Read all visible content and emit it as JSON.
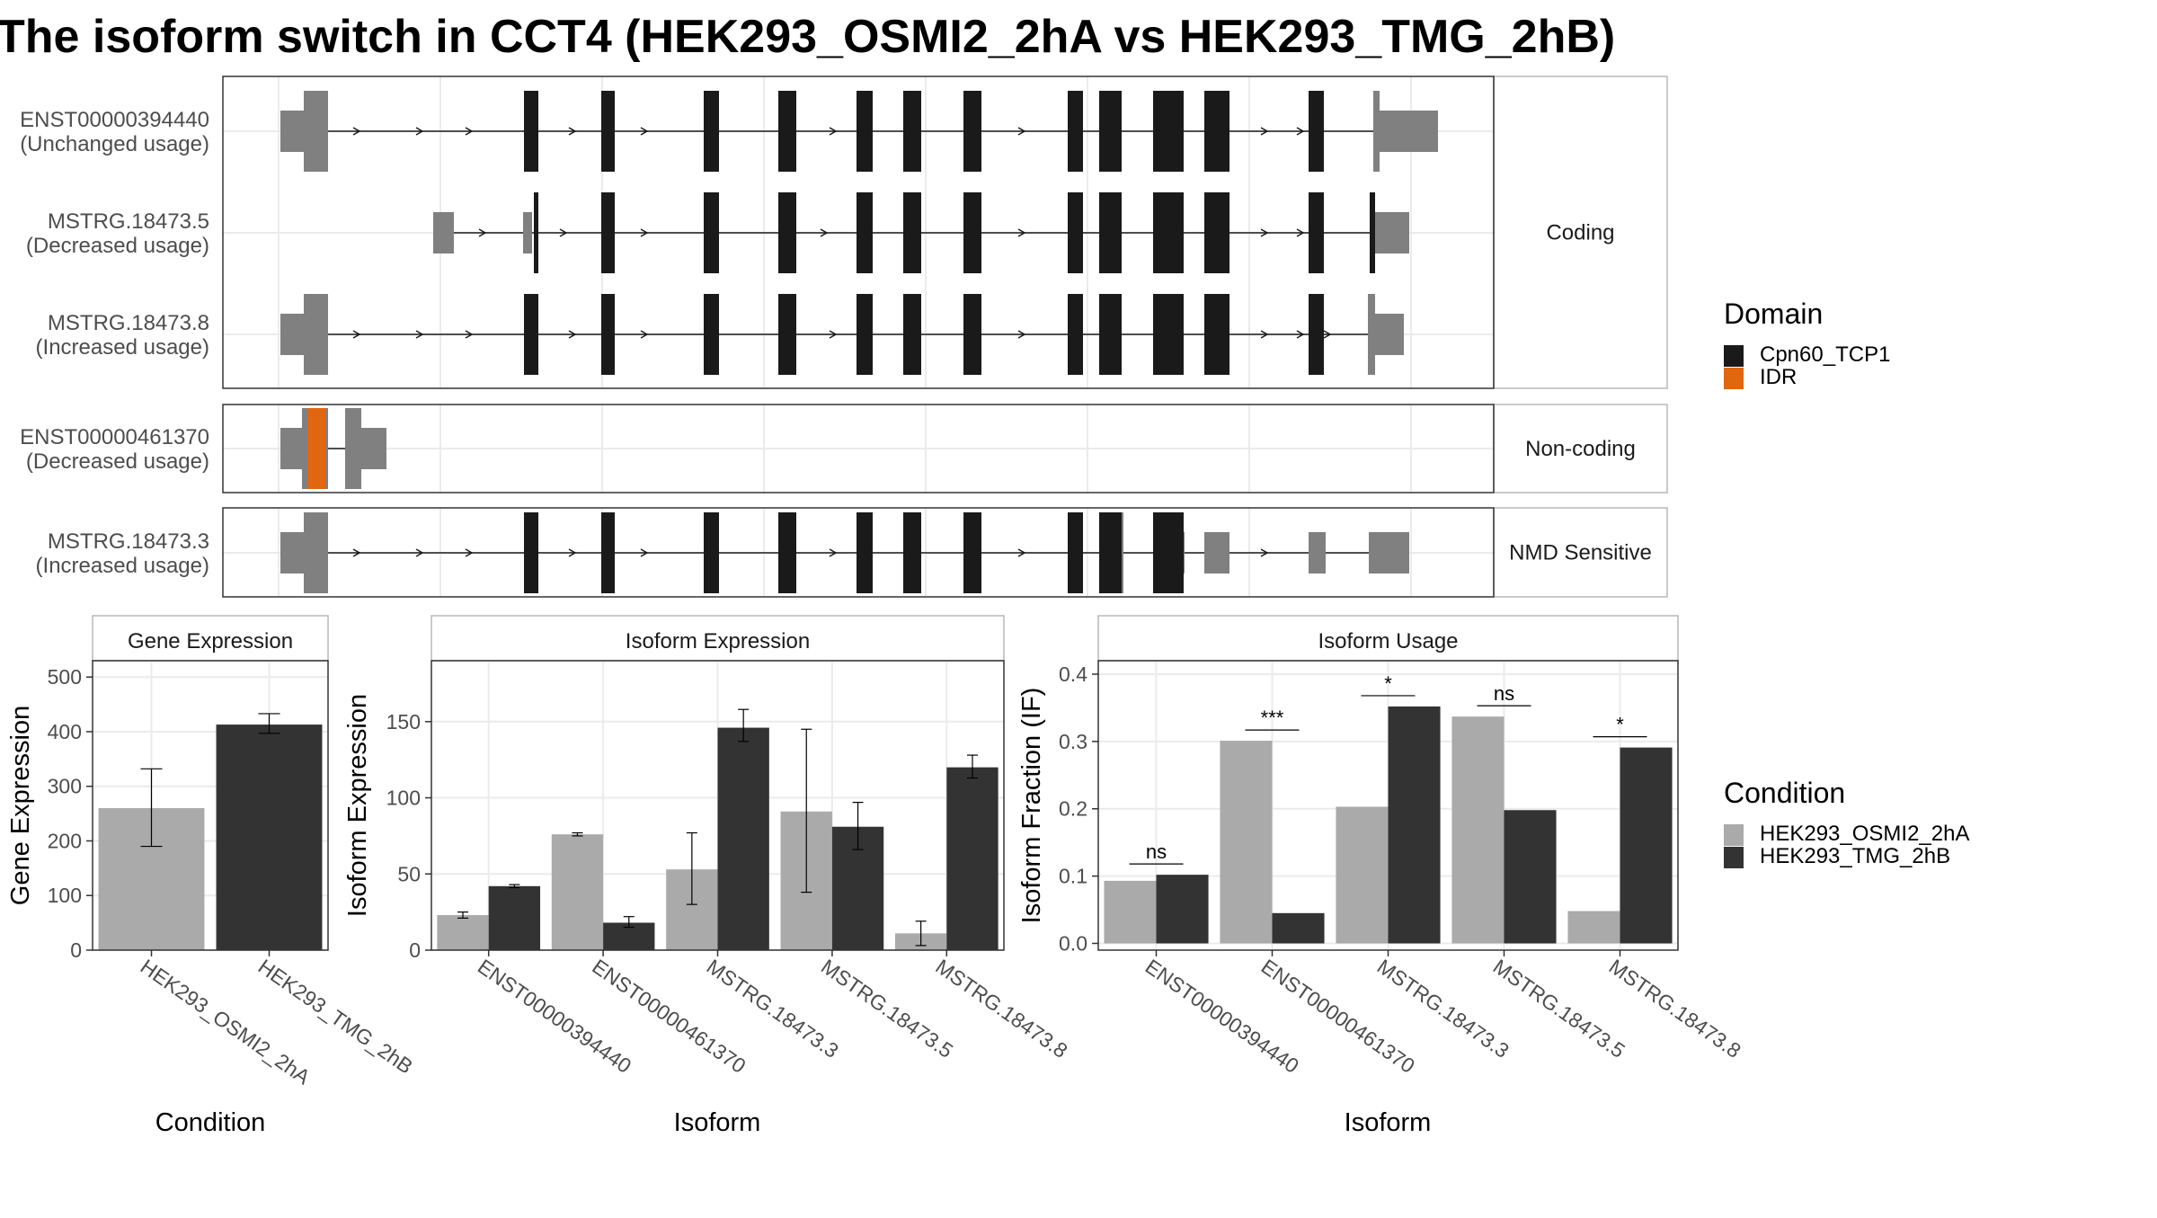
{
  "title": "The isoform switch in CCT4 (HEK293_OSMI2_2hA vs HEK293_TMG_2hB)",
  "transcripts": [
    {
      "id": "ENST00000394440",
      "usage": "(Unchanged usage)",
      "group": "coding"
    },
    {
      "id": "MSTRG.18473.5",
      "usage": "(Decreased usage)",
      "group": "coding"
    },
    {
      "id": "MSTRG.18473.8",
      "usage": "(Increased usage)",
      "group": "coding"
    },
    {
      "id": "ENST00000461370",
      "usage": "(Decreased usage)",
      "group": "noncoding"
    },
    {
      "id": "MSTRG.18473.3",
      "usage": "(Increased usage)",
      "group": "nmd"
    }
  ],
  "strips": {
    "coding": "Coding",
    "noncoding": "Non-coding",
    "nmd": "NMD Sensitive"
  },
  "domain_legend": {
    "title": "Domain",
    "items": [
      {
        "label": "Cpn60_TCP1",
        "color": "#1a1a1a"
      },
      {
        "label": "IDR",
        "color": "#e06610"
      }
    ]
  },
  "condition_legend": {
    "title": "Condition",
    "items": [
      {
        "label": "HEK293_OSMI2_2hA",
        "color": "#aaaaaa"
      },
      {
        "label": "HEK293_TMG_2hB",
        "color": "#333333"
      }
    ]
  },
  "colors": {
    "utr": "#808080",
    "cds": "#1a1a1a",
    "idr": "#e06610",
    "cond1": "#aaaaaa",
    "cond2": "#333333"
  },
  "chart_data": [
    {
      "type": "bar",
      "panel": "Gene Expression",
      "xlabel": "Condition",
      "ylabel": "Gene Expression",
      "categories": [
        "HEK293_OSMI2_2hA",
        "HEK293_TMG_2hB"
      ],
      "values": [
        260,
        413
      ],
      "error_low": [
        190,
        397
      ],
      "error_high": [
        332,
        433
      ],
      "ylim": [
        0,
        530
      ],
      "yticks": [
        0,
        100,
        200,
        300,
        400,
        500
      ]
    },
    {
      "type": "bar",
      "panel": "Isoform Expression",
      "xlabel": "Isoform",
      "ylabel": "Isoform Expression",
      "categories": [
        "ENST00000394440",
        "ENST00000461370",
        "MSTRG.18473.3",
        "MSTRG.18473.5",
        "MSTRG.18473.8"
      ],
      "series": [
        {
          "name": "HEK293_OSMI2_2hA",
          "values": [
            23,
            76,
            53,
            91,
            11
          ],
          "error_low": [
            21,
            75,
            30,
            38,
            3
          ],
          "error_high": [
            25,
            77,
            77,
            145,
            19
          ]
        },
        {
          "name": "HEK293_TMG_2hB",
          "values": [
            42,
            18,
            146,
            81,
            120
          ],
          "error_low": [
            41,
            15,
            137,
            66,
            113
          ],
          "error_high": [
            43,
            22,
            158,
            97,
            128
          ]
        }
      ],
      "ylim": [
        0,
        190
      ],
      "yticks": [
        0,
        50,
        100,
        150
      ]
    },
    {
      "type": "bar",
      "panel": "Isoform Usage",
      "xlabel": "Isoform",
      "ylabel": "Isoform Fraction (IF)",
      "categories": [
        "ENST00000394440",
        "ENST00000461370",
        "MSTRG.18473.3",
        "MSTRG.18473.5",
        "MSTRG.18473.8"
      ],
      "series": [
        {
          "name": "HEK293_OSMI2_2hA",
          "values": [
            0.093,
            0.301,
            0.203,
            0.337,
            0.048
          ]
        },
        {
          "name": "HEK293_TMG_2hB",
          "values": [
            0.102,
            0.045,
            0.352,
            0.198,
            0.291
          ]
        }
      ],
      "significance": [
        "ns",
        "***",
        "*",
        "ns",
        "*"
      ],
      "ylim": [
        -0.01,
        0.42
      ],
      "yticks": [
        0.0,
        0.1,
        0.2,
        0.3,
        0.4
      ]
    }
  ]
}
